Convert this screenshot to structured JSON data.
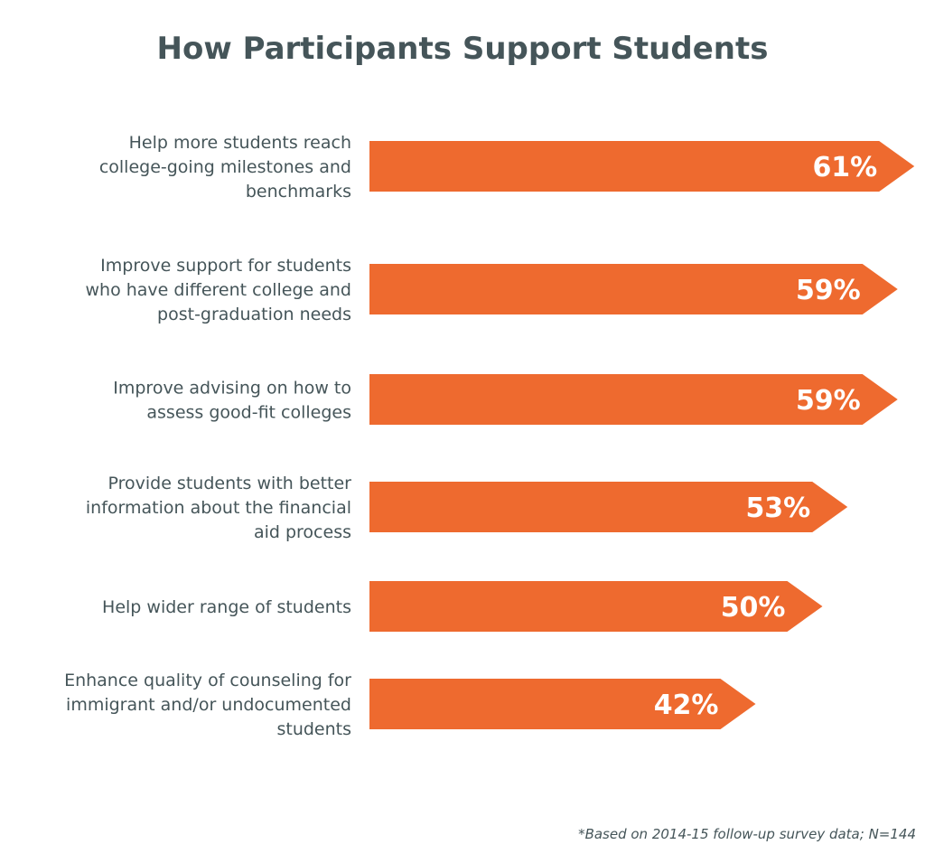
{
  "colors": {
    "bar": "#ee6a2f",
    "text": "#455559",
    "value_text": "#ffffff"
  },
  "chart_data": {
    "type": "bar",
    "orientation": "horizontal",
    "title": "How Participants Support Students",
    "categories": [
      [
        "Help more students reach",
        "college-going milestones and",
        "benchmarks"
      ],
      [
        "Improve support for students",
        "who have different college and",
        "post-graduation needs"
      ],
      [
        "Improve advising on how to",
        "assess good-fit colleges"
      ],
      [
        "Provide students with better",
        "information about the financial",
        "aid process"
      ],
      [
        "Help wider range of students"
      ],
      [
        "Enhance quality of counseling for",
        "immigrant and/or undocumented",
        "students"
      ]
    ],
    "values": [
      61,
      59,
      59,
      53,
      50,
      42
    ],
    "value_labels": [
      "61%",
      "59%",
      "59%",
      "53%",
      "50%",
      "42%"
    ],
    "unit": "%",
    "grid": false,
    "legend": "none"
  },
  "footnote": "*Based on 2014-15 follow-up survey data; N=144"
}
